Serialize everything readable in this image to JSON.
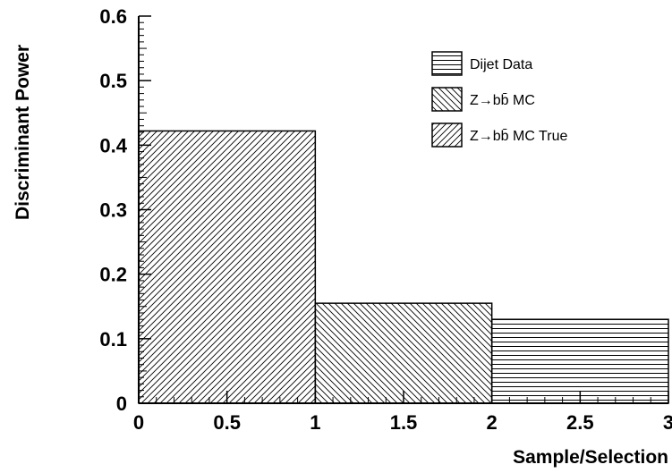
{
  "chart_data": {
    "type": "bar",
    "xlabel": "Sample/Selection",
    "ylabel": "Discriminant Power",
    "xlim": [
      0,
      3
    ],
    "ylim": [
      0,
      0.6
    ],
    "x_ticks": [
      "0",
      "0.5",
      "1",
      "1.5",
      "2",
      "2.5",
      "3"
    ],
    "y_ticks": [
      "0",
      "0.1",
      "0.2",
      "0.3",
      "0.4",
      "0.5",
      "0.6"
    ],
    "grid": false,
    "legend_position": "top-right",
    "series": [
      {
        "name": "Dijet Data",
        "pattern": "horizontal",
        "bin": [
          2,
          3
        ],
        "value": 0.13
      },
      {
        "name": "Z→bb̄ MC",
        "pattern": "diagonal-down",
        "bin": [
          1,
          2
        ],
        "value": 0.155
      },
      {
        "name": "Z→bb̄ MC True",
        "pattern": "diagonal-up",
        "bin": [
          0,
          1
        ],
        "value": 0.422
      }
    ]
  }
}
